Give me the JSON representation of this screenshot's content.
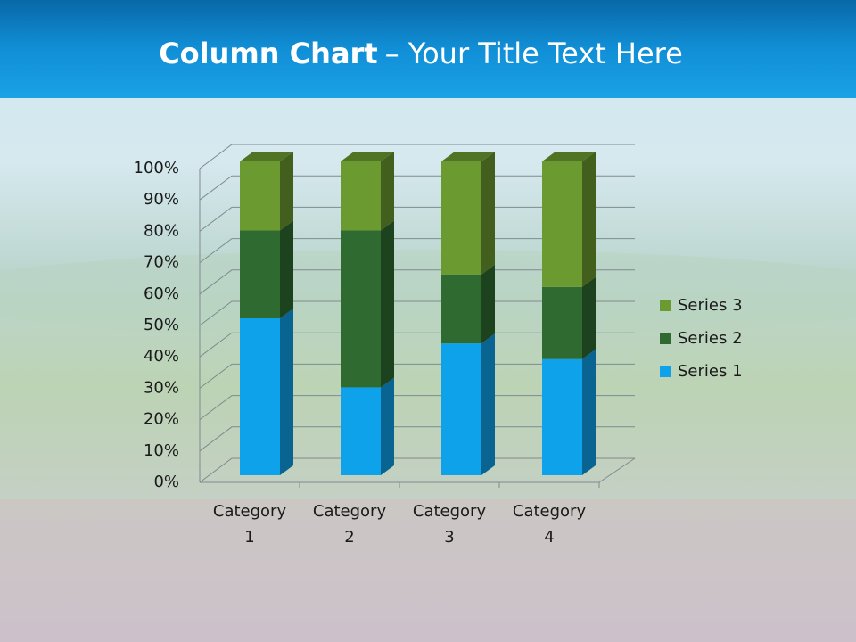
{
  "chart_data": {
    "type": "stacked-bar-3d",
    "title": [
      "Column Chart",
      "– Your Title Text Here"
    ],
    "categories": [
      "Category 1",
      "Category 2",
      "Category 3",
      "Category 4"
    ],
    "series": [
      {
        "name": "Series 1",
        "color": "#0ea2ea",
        "values": [
          50,
          28,
          42,
          37
        ]
      },
      {
        "name": "Series 2",
        "color": "#2f6a31",
        "values": [
          28,
          50,
          22,
          23
        ]
      },
      {
        "name": "Series 3",
        "color": "#6a9a30",
        "values": [
          22,
          22,
          36,
          40
        ]
      }
    ],
    "ylim": [
      0,
      100
    ],
    "yticks": [
      {
        "value": 0,
        "label": "0%"
      },
      {
        "value": 10,
        "label": "10%"
      },
      {
        "value": 20,
        "label": "20%"
      },
      {
        "value": 30,
        "label": "30%"
      },
      {
        "value": 40,
        "label": "40%"
      },
      {
        "value": 50,
        "label": "50%"
      },
      {
        "value": 60,
        "label": "60%"
      },
      {
        "value": 70,
        "label": "70%"
      },
      {
        "value": 80,
        "label": "80%"
      },
      {
        "value": 90,
        "label": "90%"
      },
      {
        "value": 100,
        "label": "100%"
      }
    ],
    "grid": true,
    "legend": "right"
  }
}
